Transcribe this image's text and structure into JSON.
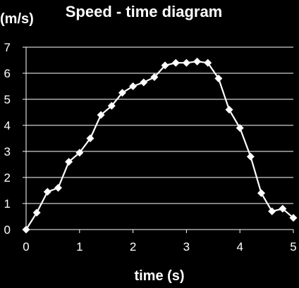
{
  "chart_data": {
    "type": "line",
    "title": "Speed - time diagram",
    "xlabel": "time (s)",
    "ylabel": "(m/s)",
    "xlim": [
      0,
      5
    ],
    "ylim": [
      0,
      7
    ],
    "x_ticks": [
      0,
      1,
      2,
      3,
      4,
      5
    ],
    "y_ticks": [
      0,
      1,
      2,
      3,
      4,
      5,
      6,
      7
    ],
    "grid": "horizontal",
    "line_color": "#ffffff",
    "marker": "diamond",
    "series": [
      {
        "x": [
          0,
          0.2,
          0.4,
          0.6,
          0.8,
          1.0,
          1.2,
          1.4,
          1.6,
          1.8,
          2.0,
          2.2,
          2.4,
          2.6,
          2.8,
          3.0,
          3.2,
          3.4,
          3.6,
          3.8,
          4.0,
          4.2,
          4.4,
          4.6,
          4.8,
          5.0
        ],
        "y": [
          0,
          0.65,
          1.45,
          1.6,
          2.6,
          2.95,
          3.5,
          4.4,
          4.75,
          5.25,
          5.5,
          5.65,
          5.85,
          6.3,
          6.4,
          6.4,
          6.45,
          6.4,
          5.8,
          4.6,
          3.9,
          2.8,
          1.4,
          0.7,
          0.8,
          0.45
        ]
      }
    ]
  }
}
